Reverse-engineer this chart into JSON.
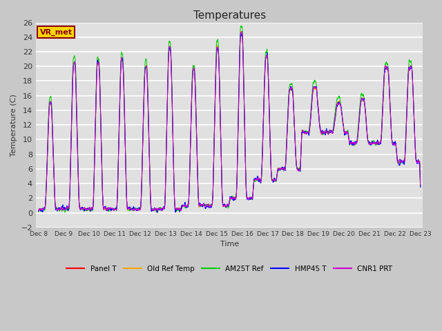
{
  "title": "Temperatures",
  "xlabel": "Time",
  "ylabel": "Temperature (C)",
  "ylim": [
    -2,
    26
  ],
  "yticks": [
    -2,
    0,
    2,
    4,
    6,
    8,
    10,
    12,
    14,
    16,
    18,
    20,
    22,
    24,
    26
  ],
  "x_labels": [
    "Dec 8",
    "Dec 9",
    "Dec 10",
    "Dec 11",
    "Dec 12",
    "Dec 13",
    "Dec 14",
    "Dec 15",
    "Dec 16",
    "Dec 17",
    "Dec 18",
    "Dec 19",
    "Dec 20",
    "Dec 21",
    "Dec 22",
    "Dec 23"
  ],
  "annotation_text": "VR_met",
  "annotation_box_color": "#FFD700",
  "annotation_text_color": "#8B0000",
  "colors": {
    "Panel T": "#FF0000",
    "Old Ref Temp": "#FFA500",
    "AM25T Ref": "#00CC00",
    "HMP45 T": "#0000FF",
    "CNR1 PRT": "#CC00CC"
  },
  "legend_entries": [
    "Panel T",
    "Old Ref Temp",
    "AM25T Ref",
    "HMP45 T",
    "CNR1 PRT"
  ],
  "fig_bg_color": "#C8C8C8",
  "plot_bg_color": "#E0E0E0",
  "grid_color": "#FFFFFF",
  "title_fontsize": 11,
  "n_points": 3840
}
